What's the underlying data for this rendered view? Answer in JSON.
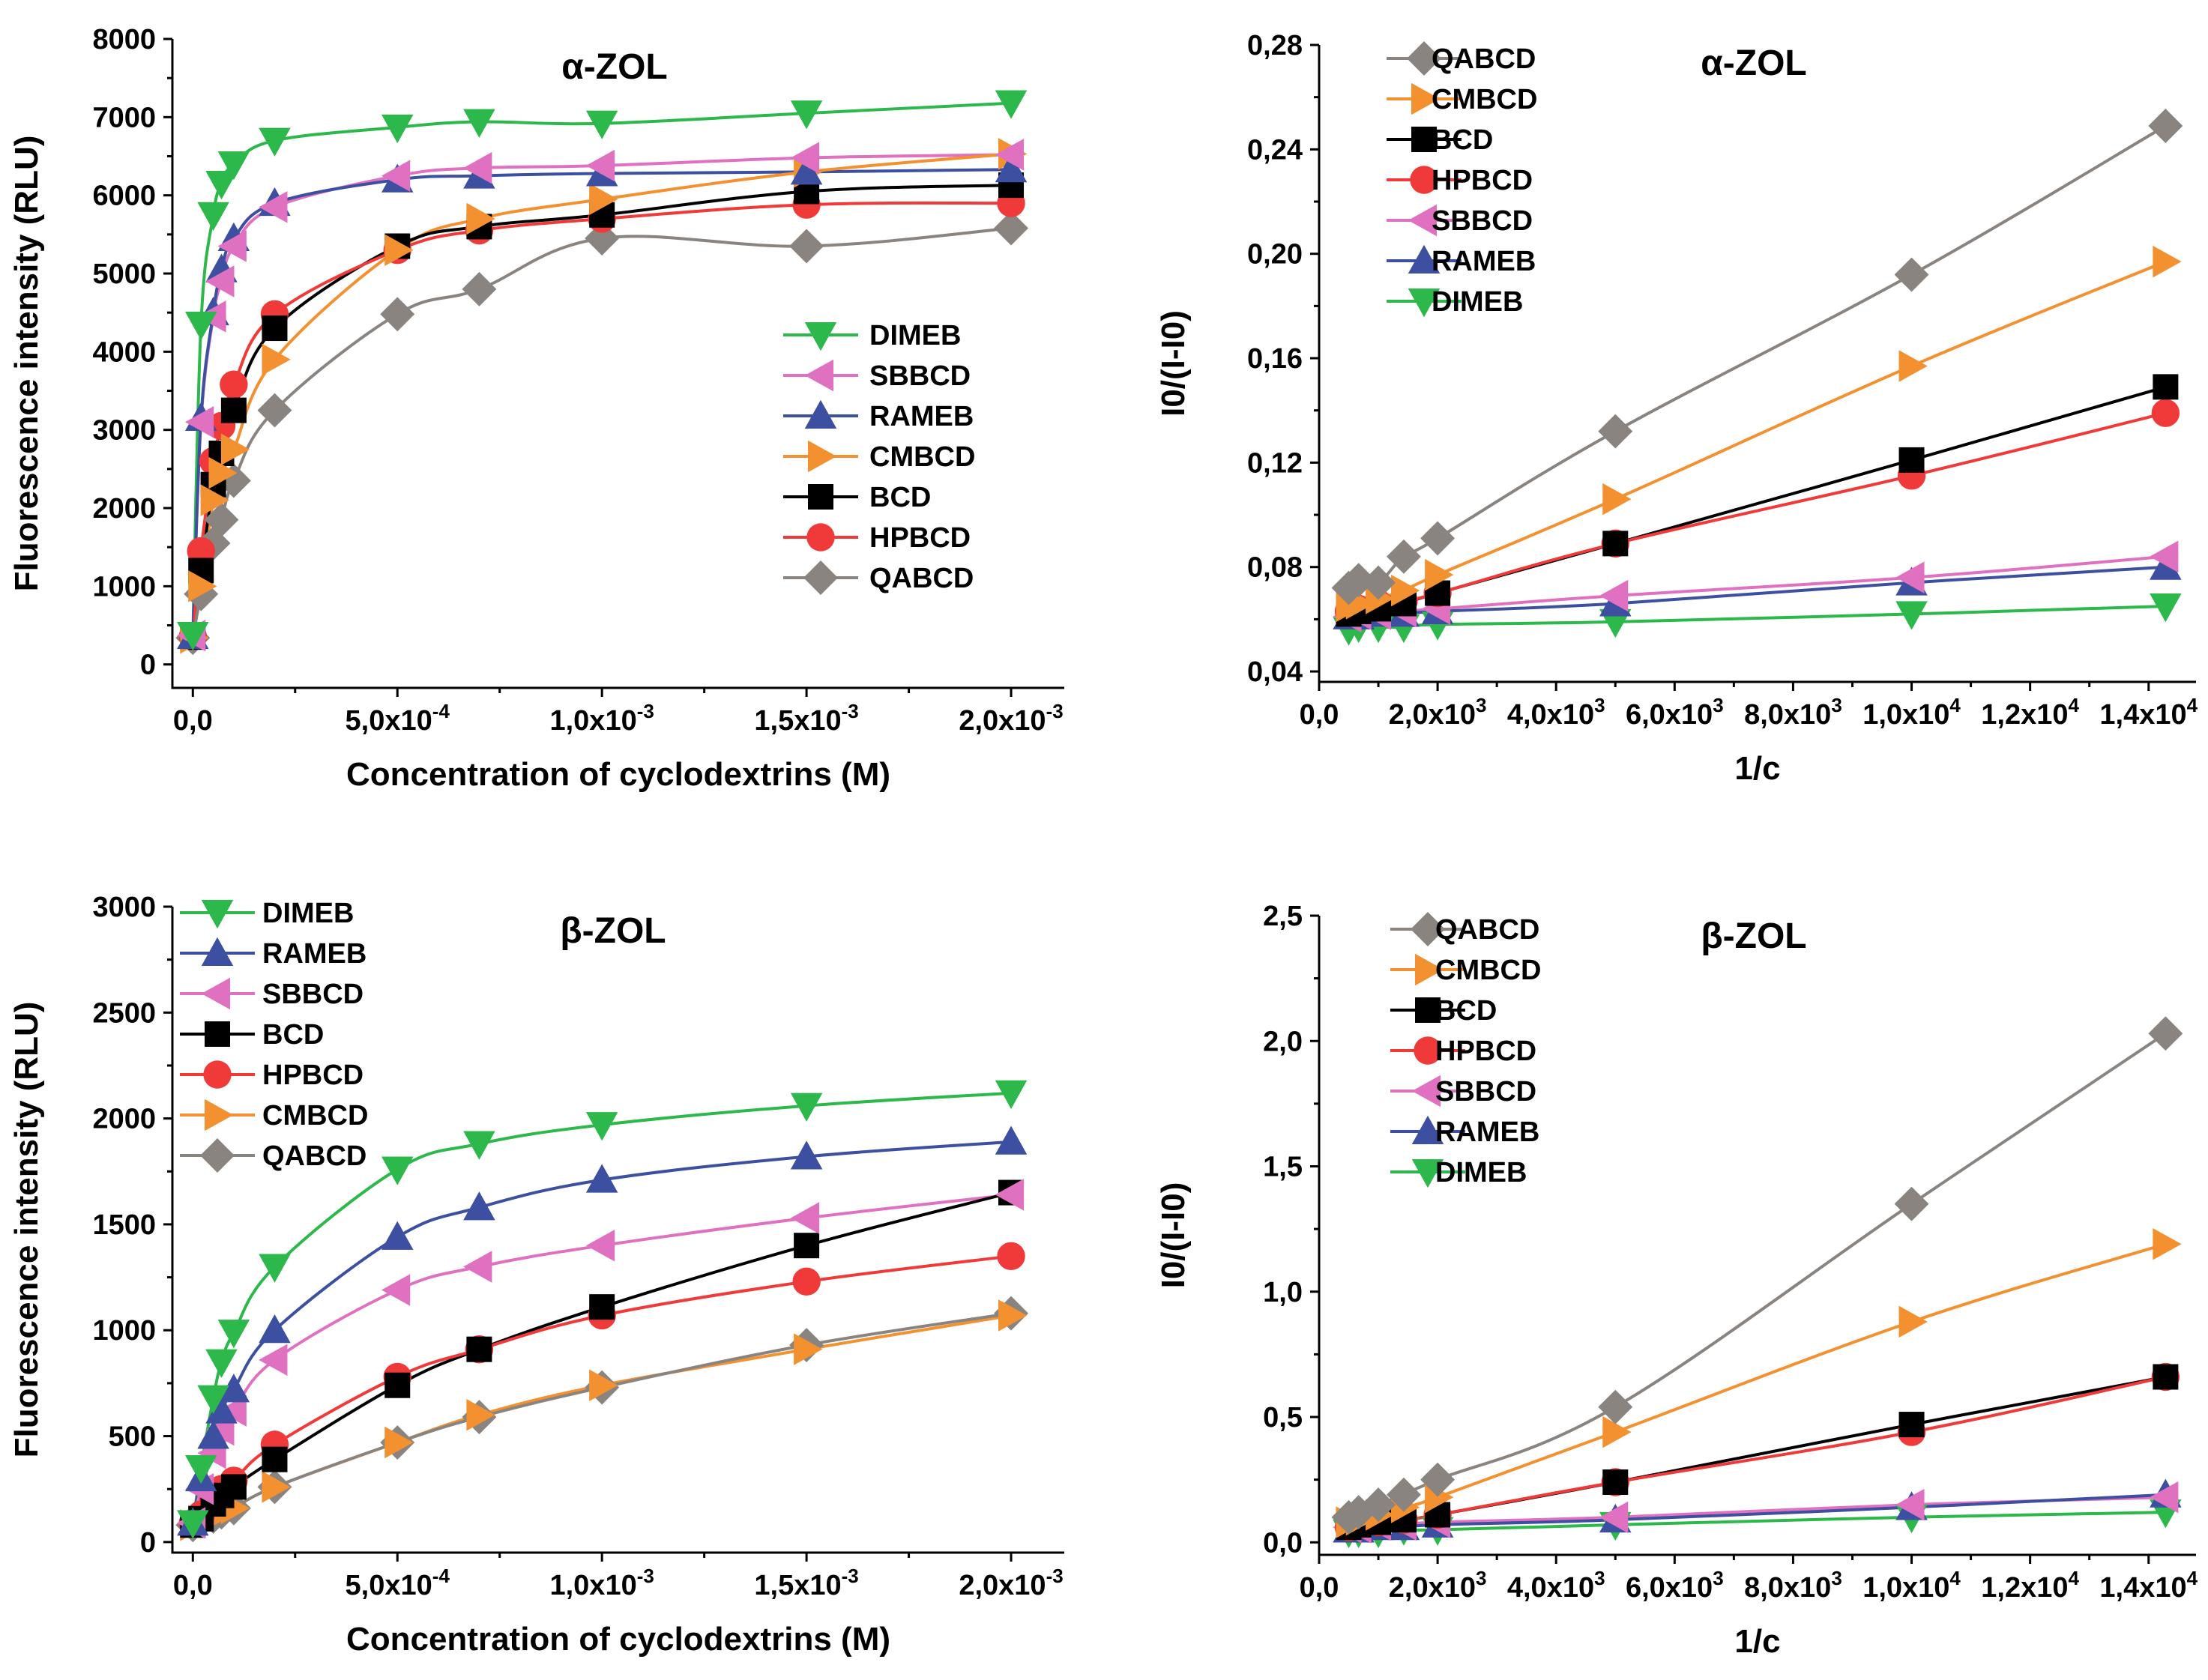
{
  "chart_data": [
    {
      "type": "line",
      "id": "p1",
      "title": "α-ZOL",
      "xlabel": "Concentration of cyclodextrins (M)",
      "ylabel": "Fluorescence intensity (RLU)",
      "xlim": [
        -5e-05,
        0.00213
      ],
      "ylim": [
        -300,
        8000
      ],
      "xticks": [
        0,
        0.0005,
        0.001,
        0.0015,
        0.002
      ],
      "xtick_labels": [
        "0,0",
        "5,0x10-4",
        "1,0x10-3",
        "1,5x10-3",
        "2,0x10-3"
      ],
      "yticks": [
        0,
        1000,
        2000,
        3000,
        4000,
        5000,
        6000,
        7000,
        8000
      ],
      "ytick_labels": [
        "0",
        "1000",
        "2000",
        "3000",
        "4000",
        "5000",
        "6000",
        "7000",
        "8000"
      ],
      "legend_position": "right-center",
      "series": [
        {
          "name": "DIMEB",
          "color": "#2db84c",
          "marker": "tri-down",
          "x": [
            0,
            2e-05,
            5e-05,
            7e-05,
            0.0001,
            0.0002,
            0.0005,
            0.0007,
            0.001,
            0.0015,
            0.002
          ],
          "y": [
            380,
            4350,
            5750,
            6150,
            6400,
            6700,
            6870,
            6940,
            6920,
            7050,
            7180
          ]
        },
        {
          "name": "SBBCD",
          "color": "#e070c0",
          "marker": "tri-left",
          "x": [
            0,
            2e-05,
            5e-05,
            7e-05,
            0.0001,
            0.0002,
            0.0005,
            0.0007,
            0.001,
            0.0015,
            0.002
          ],
          "y": [
            370,
            3100,
            4450,
            4900,
            5350,
            5850,
            6250,
            6350,
            6380,
            6480,
            6520
          ]
        },
        {
          "name": "RAMEB",
          "color": "#3c4fa0",
          "marker": "tri-up",
          "x": [
            0,
            2e-05,
            5e-05,
            7e-05,
            0.0001,
            0.0002,
            0.0005,
            0.0007,
            0.001,
            0.0015,
            0.002
          ],
          "y": [
            360,
            3150,
            4500,
            5050,
            5450,
            5900,
            6200,
            6250,
            6280,
            6300,
            6330
          ]
        },
        {
          "name": "CMBCD",
          "color": "#f39030",
          "marker": "tri-right",
          "x": [
            0,
            2e-05,
            5e-05,
            7e-05,
            0.0001,
            0.0002,
            0.0005,
            0.0007,
            0.001,
            0.0015,
            0.002
          ],
          "y": [
            340,
            1000,
            2100,
            2450,
            2750,
            3900,
            5300,
            5700,
            5950,
            6300,
            6530
          ]
        },
        {
          "name": "BCD",
          "color": "#000000",
          "marker": "square",
          "x": [
            0,
            2e-05,
            5e-05,
            7e-05,
            0.0001,
            0.0002,
            0.0005,
            0.0007,
            0.001,
            0.0015,
            0.002
          ],
          "y": [
            350,
            1200,
            2300,
            2700,
            3250,
            4300,
            5350,
            5600,
            5750,
            6050,
            6130
          ]
        },
        {
          "name": "HPBCD",
          "color": "#f03a3a",
          "marker": "circle",
          "x": [
            0,
            2e-05,
            5e-05,
            7e-05,
            0.0001,
            0.0002,
            0.0005,
            0.0007,
            0.001,
            0.0015,
            0.002
          ],
          "y": [
            360,
            1450,
            2600,
            3050,
            3580,
            4480,
            5300,
            5550,
            5700,
            5880,
            5900
          ]
        },
        {
          "name": "QABCD",
          "color": "#8a8480",
          "marker": "diamond",
          "x": [
            0,
            2e-05,
            5e-05,
            7e-05,
            0.0001,
            0.0002,
            0.0005,
            0.0007,
            0.001,
            0.0015,
            0.002
          ],
          "y": [
            340,
            900,
            1550,
            1850,
            2350,
            3250,
            4480,
            4800,
            5450,
            5350,
            5580
          ]
        }
      ]
    },
    {
      "type": "scatter",
      "id": "p2",
      "title": "α-ZOL",
      "xlabel": "1/c",
      "ylabel": "I0/(I-I0)",
      "xlim": [
        0,
        14800
      ],
      "ylim": [
        0.036,
        0.28
      ],
      "xticks": [
        0,
        2000,
        4000,
        6000,
        8000,
        10000,
        12000,
        14000
      ],
      "xtick_labels": [
        "0,0",
        "2,0x103",
        "4,0x103",
        "6,0x103",
        "8,0x103",
        "1,0x104",
        "1,2x104",
        "1,4x104"
      ],
      "yticks": [
        0.04,
        0.08,
        0.12,
        0.16,
        0.2,
        0.24,
        0.28
      ],
      "ytick_labels": [
        "0,04",
        "0,08",
        "0,12",
        "0,16",
        "0,20",
        "0,24",
        "0,28"
      ],
      "legend_position": "top-left",
      "series": [
        {
          "name": "QABCD",
          "color": "#8a8480",
          "marker": "diamond",
          "x": [
            500,
            667,
            1000,
            1429,
            2000,
            5000,
            10000,
            14286
          ],
          "y": [
            0.072,
            0.075,
            0.074,
            0.084,
            0.091,
            0.132,
            0.192,
            0.249
          ],
          "fit": [
            0.0575,
            0.01335
          ]
        },
        {
          "name": "CMBCD",
          "color": "#f39030",
          "marker": "tri-right",
          "x": [
            500,
            667,
            1000,
            1429,
            2000,
            5000,
            10000,
            14286
          ],
          "y": [
            0.065,
            0.066,
            0.068,
            0.071,
            0.077,
            0.106,
            0.157,
            0.197
          ],
          "fit": [
            0.0575,
            0.0098
          ]
        },
        {
          "name": "BCD",
          "color": "#000000",
          "marker": "square",
          "x": [
            500,
            667,
            1000,
            1429,
            2000,
            5000,
            10000,
            14286
          ],
          "y": [
            0.062,
            0.063,
            0.064,
            0.066,
            0.07,
            0.089,
            0.121,
            0.149
          ],
          "fit": [
            0.06,
            0.0062
          ]
        },
        {
          "name": "HPBCD",
          "color": "#f03a3a",
          "marker": "circle",
          "x": [
            500,
            667,
            1000,
            1429,
            2000,
            5000,
            10000,
            14286
          ],
          "y": [
            0.063,
            0.064,
            0.066,
            0.067,
            0.07,
            0.089,
            0.115,
            0.139
          ],
          "fit": [
            0.0615,
            0.0055
          ]
        },
        {
          "name": "SBBCD",
          "color": "#e070c0",
          "marker": "tri-left",
          "x": [
            500,
            667,
            1000,
            1429,
            2000,
            5000,
            10000,
            14286
          ],
          "y": [
            0.061,
            0.062,
            0.062,
            0.063,
            0.064,
            0.069,
            0.076,
            0.084
          ],
          "fit": [
            0.0615,
            0.00155
          ]
        },
        {
          "name": "RAMEB",
          "color": "#3c4fa0",
          "marker": "tri-up",
          "x": [
            500,
            667,
            1000,
            1429,
            2000,
            5000,
            10000,
            14286
          ],
          "y": [
            0.061,
            0.061,
            0.062,
            0.062,
            0.063,
            0.066,
            0.074,
            0.08
          ],
          "fit": [
            0.0615,
            0.0012
          ]
        },
        {
          "name": "DIMEB",
          "color": "#2db84c",
          "marker": "tri-down",
          "x": [
            500,
            667,
            1000,
            1429,
            2000,
            5000,
            10000,
            14286
          ],
          "y": [
            0.056,
            0.057,
            0.057,
            0.057,
            0.058,
            0.059,
            0.062,
            0.065
          ],
          "fit": [
            0.0575,
            0.00058
          ]
        }
      ]
    },
    {
      "type": "line",
      "id": "p3",
      "title": "β-ZOL",
      "xlabel": "Concentration of cyclodextrins (M)",
      "ylabel": "Fluorescence intensity (RLU)",
      "xlim": [
        -5e-05,
        0.00213
      ],
      "ylim": [
        -50,
        3000
      ],
      "xticks": [
        0,
        0.0005,
        0.001,
        0.0015,
        0.002
      ],
      "xtick_labels": [
        "0,0",
        "5,0x10-4",
        "1,0x10-3",
        "1,5x10-3",
        "2,0x10-3"
      ],
      "yticks": [
        0,
        500,
        1000,
        1500,
        2000,
        2500,
        3000
      ],
      "ytick_labels": [
        "0",
        "500",
        "1000",
        "1500",
        "2000",
        "2500",
        "3000"
      ],
      "legend_position": "top-left",
      "series": [
        {
          "name": "DIMEB",
          "color": "#2db84c",
          "marker": "tri-down",
          "x": [
            0,
            2e-05,
            5e-05,
            7e-05,
            0.0001,
            0.0002,
            0.0005,
            0.0007,
            0.001,
            0.0015,
            0.002
          ],
          "y": [
            90,
            350,
            680,
            850,
            990,
            1300,
            1760,
            1880,
            1970,
            2060,
            2120
          ]
        },
        {
          "name": "RAMEB",
          "color": "#3c4fa0",
          "marker": "tri-up",
          "x": [
            0,
            2e-05,
            5e-05,
            7e-05,
            0.0001,
            0.0002,
            0.0005,
            0.0007,
            0.001,
            0.0015,
            0.002
          ],
          "y": [
            90,
            300,
            500,
            620,
            720,
            1000,
            1440,
            1580,
            1710,
            1820,
            1890
          ]
        },
        {
          "name": "SBBCD",
          "color": "#e070c0",
          "marker": "tri-left",
          "x": [
            0,
            2e-05,
            5e-05,
            7e-05,
            0.0001,
            0.0002,
            0.0005,
            0.0007,
            0.001,
            0.0015,
            0.002
          ],
          "y": [
            90,
            250,
            420,
            530,
            620,
            860,
            1190,
            1300,
            1400,
            1530,
            1640
          ]
        },
        {
          "name": "BCD",
          "color": "#000000",
          "marker": "square",
          "x": [
            0,
            2e-05,
            5e-05,
            7e-05,
            0.0001,
            0.0002,
            0.0005,
            0.0007,
            0.001,
            0.0015,
            0.002
          ],
          "y": [
            80,
            110,
            180,
            220,
            260,
            390,
            740,
            910,
            1110,
            1400,
            1650
          ]
        },
        {
          "name": "HPBCD",
          "color": "#f03a3a",
          "marker": "circle",
          "x": [
            0,
            2e-05,
            5e-05,
            7e-05,
            0.0001,
            0.0002,
            0.0005,
            0.0007,
            0.001,
            0.0015,
            0.002
          ],
          "y": [
            90,
            130,
            200,
            250,
            290,
            460,
            780,
            910,
            1070,
            1230,
            1350
          ]
        },
        {
          "name": "CMBCD",
          "color": "#f39030",
          "marker": "tri-right",
          "x": [
            0,
            2e-05,
            5e-05,
            7e-05,
            0.0001,
            0.0002,
            0.0005,
            0.0007,
            0.001,
            0.0015,
            0.002
          ],
          "y": [
            80,
            100,
            120,
            140,
            160,
            260,
            470,
            600,
            740,
            910,
            1070
          ]
        },
        {
          "name": "QABCD",
          "color": "#8a8480",
          "marker": "diamond",
          "x": [
            0,
            2e-05,
            5e-05,
            7e-05,
            0.0001,
            0.0002,
            0.0005,
            0.0007,
            0.001,
            0.0015,
            0.002
          ],
          "y": [
            80,
            100,
            120,
            140,
            160,
            260,
            470,
            590,
            730,
            930,
            1080
          ]
        }
      ]
    },
    {
      "type": "scatter",
      "id": "p4",
      "title": "β-ZOL",
      "xlabel": "1/c",
      "ylabel": "I0/(I-I0)",
      "xlim": [
        0,
        14800
      ],
      "ylim": [
        -0.05,
        2.5
      ],
      "xticks": [
        0,
        2000,
        4000,
        6000,
        8000,
        10000,
        12000,
        14000
      ],
      "xtick_labels": [
        "0,0",
        "2,0x103",
        "4,0x103",
        "6,0x103",
        "8,0x103",
        "1,0x104",
        "1,2x104",
        "1,4x104"
      ],
      "yticks": [
        0,
        0.5,
        1.0,
        1.5,
        2.0,
        2.5
      ],
      "ytick_labels": [
        "0,0",
        "0,5",
        "1,0",
        "1,5",
        "2,0",
        "2,5"
      ],
      "legend_position": "top-left",
      "series": [
        {
          "name": "QABCD",
          "color": "#8a8480",
          "marker": "diamond",
          "x": [
            500,
            667,
            1000,
            1429,
            2000,
            5000,
            10000,
            14286
          ],
          "y": [
            0.1,
            0.12,
            0.15,
            0.19,
            0.25,
            0.54,
            1.35,
            2.03
          ],
          "fit": [
            0.02,
            0.1405
          ]
        },
        {
          "name": "CMBCD",
          "color": "#f39030",
          "marker": "tri-right",
          "x": [
            500,
            667,
            1000,
            1429,
            2000,
            5000,
            10000,
            14286
          ],
          "y": [
            0.08,
            0.09,
            0.11,
            0.14,
            0.18,
            0.44,
            0.88,
            1.19
          ],
          "fit": [
            0.01,
            0.0827
          ]
        },
        {
          "name": "BCD",
          "color": "#000000",
          "marker": "square",
          "x": [
            500,
            667,
            1000,
            1429,
            2000,
            5000,
            10000,
            14286
          ],
          "y": [
            0.06,
            0.07,
            0.08,
            0.09,
            0.11,
            0.24,
            0.47,
            0.66
          ],
          "fit": [
            0.03,
            0.0434
          ]
        },
        {
          "name": "HPBCD",
          "color": "#f03a3a",
          "marker": "circle",
          "x": [
            500,
            667,
            1000,
            1429,
            2000,
            5000,
            10000,
            14286
          ],
          "y": [
            0.06,
            0.07,
            0.08,
            0.09,
            0.11,
            0.24,
            0.44,
            0.66
          ],
          "fit": [
            0.03,
            0.0434
          ]
        },
        {
          "name": "SBBCD",
          "color": "#e070c0",
          "marker": "tri-left",
          "x": [
            500,
            667,
            1000,
            1429,
            2000,
            5000,
            10000,
            14286
          ],
          "y": [
            0.06,
            0.06,
            0.07,
            0.07,
            0.08,
            0.1,
            0.15,
            0.18
          ],
          "fit": [
            0.06,
            0.0088
          ]
        },
        {
          "name": "RAMEB",
          "color": "#3c4fa0",
          "marker": "tri-up",
          "x": [
            500,
            667,
            1000,
            1429,
            2000,
            5000,
            10000,
            14286
          ],
          "y": [
            0.05,
            0.05,
            0.06,
            0.06,
            0.07,
            0.09,
            0.14,
            0.19
          ],
          "fit": [
            0.05,
            0.0095
          ]
        },
        {
          "name": "DIMEB",
          "color": "#2db84c",
          "marker": "tri-down",
          "x": [
            500,
            667,
            1000,
            1429,
            2000,
            5000,
            10000,
            14286
          ],
          "y": [
            0.04,
            0.04,
            0.04,
            0.05,
            0.05,
            0.07,
            0.1,
            0.12
          ],
          "fit": [
            0.04,
            0.0055
          ]
        }
      ]
    }
  ]
}
